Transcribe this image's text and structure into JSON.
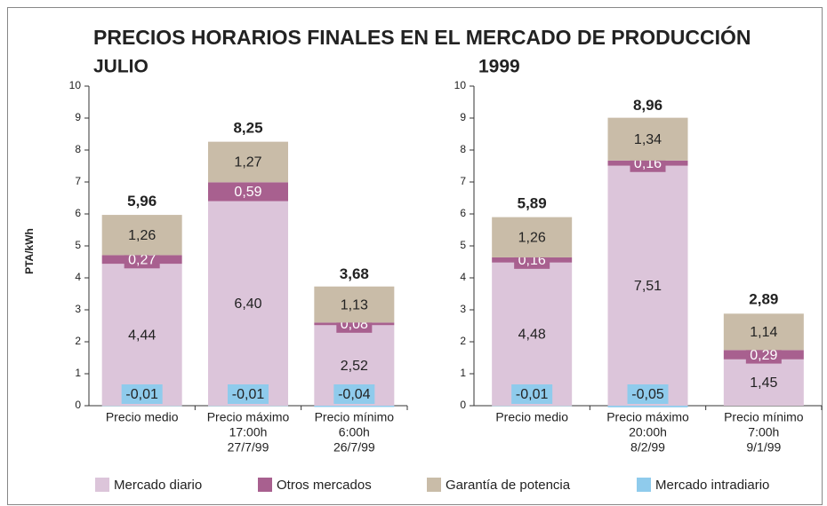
{
  "title": "PRECIOS HORARIOS FINALES EN EL MERCADO DE PRODUCCIÓN",
  "ylabel": "PTA/kWh",
  "chart_data": [
    {
      "type": "stacked-bar",
      "subtitle": "JULIO",
      "categories": [
        [
          "Precio medio"
        ],
        [
          "Precio máximo",
          "17:00h",
          "27/7/99"
        ],
        [
          "Precio mínimo",
          "6:00h",
          "26/7/99"
        ]
      ],
      "ylim": [
        0,
        10
      ],
      "yticks": [
        0,
        1,
        2,
        3,
        4,
        5,
        6,
        7,
        8,
        9,
        10
      ],
      "series": [
        {
          "name": "Mercado diario",
          "color": "#dcc5da",
          "values": [
            4.44,
            6.4,
            2.52
          ],
          "value_labels": [
            "4,44",
            "6,40",
            "2,52"
          ]
        },
        {
          "name": "Otros mercados",
          "color": "#a8608f",
          "values": [
            0.27,
            0.59,
            0.08
          ],
          "value_labels": [
            "0,27",
            "0,59",
            "0,08"
          ]
        },
        {
          "name": "Garantía de potencia",
          "color": "#c9bca8",
          "values": [
            1.26,
            1.27,
            1.13
          ],
          "value_labels": [
            "1,26",
            "1,27",
            "1,13"
          ]
        },
        {
          "name": "Mercado intradiario",
          "color": "#8fcbec",
          "values": [
            -0.01,
            -0.01,
            -0.04
          ],
          "value_labels": [
            "-0,01",
            "-0,01",
            "-0,04"
          ]
        }
      ],
      "totals": [
        5.96,
        8.25,
        3.68
      ],
      "total_labels": [
        "5,96",
        "8,25",
        "3,68"
      ]
    },
    {
      "type": "stacked-bar",
      "subtitle": "1999",
      "categories": [
        [
          "Precio medio"
        ],
        [
          "Precio máximo",
          "20:00h",
          "8/2/99"
        ],
        [
          "Precio mínimo",
          "7:00h",
          "9/1/99"
        ]
      ],
      "ylim": [
        0,
        10
      ],
      "yticks": [
        0,
        1,
        2,
        3,
        4,
        5,
        6,
        7,
        8,
        9,
        10
      ],
      "series": [
        {
          "values": [
            4.48,
            7.51,
            1.45
          ],
          "value_labels": [
            "4,48",
            "7,51",
            "1,45"
          ]
        },
        {
          "values": [
            0.16,
            0.16,
            0.29
          ],
          "value_labels": [
            "0,16",
            "0,16",
            "0,29"
          ]
        },
        {
          "values": [
            1.26,
            1.34,
            1.14
          ],
          "value_labels": [
            "1,26",
            "1,34",
            "1,14"
          ]
        },
        {
          "values": [
            -0.01,
            -0.05,
            0
          ],
          "value_labels": [
            "-0,01",
            "-0,05",
            null
          ]
        }
      ],
      "totals": [
        5.89,
        8.96,
        2.89
      ],
      "total_labels": [
        "5,89",
        "8,96",
        "2,89"
      ]
    }
  ]
}
